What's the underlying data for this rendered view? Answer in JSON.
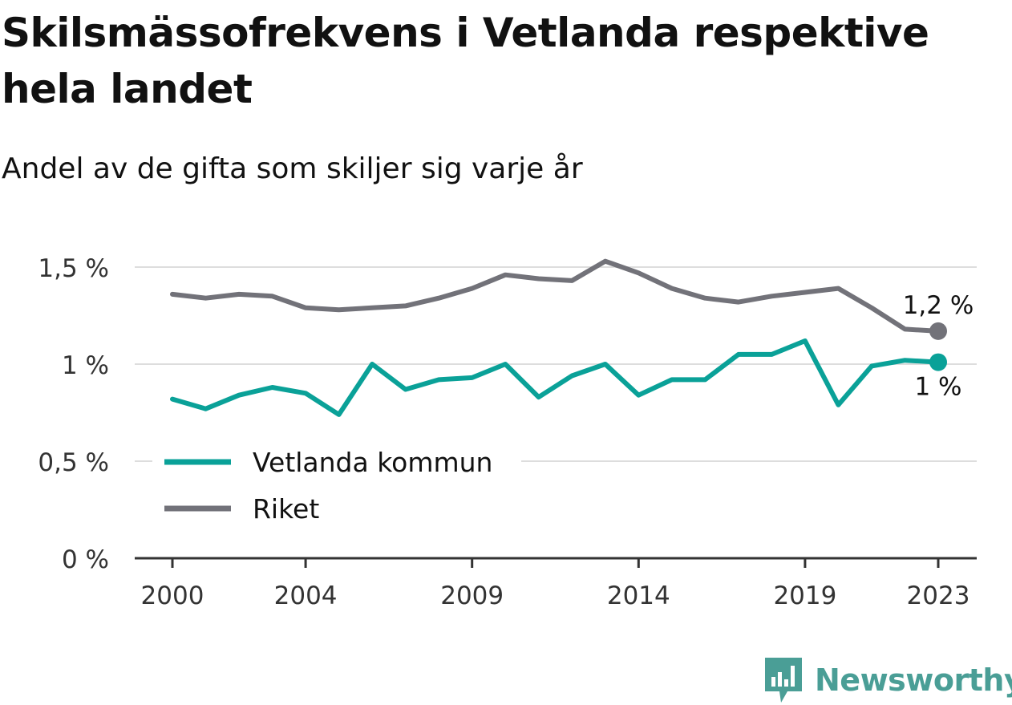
{
  "title": "Skilsmässofrekvens i Vetlanda respektive hela landet",
  "subtitle": "Andel av de gifta som skiljer sig varje år",
  "brand": "Newsworthy",
  "colors": {
    "vetlanda": "#0aa198",
    "riket": "#727279",
    "grid": "#dddddd",
    "axis": "#333333",
    "brand": "#4a9e96"
  },
  "chart_data": {
    "type": "line",
    "x": [
      2000,
      2001,
      2002,
      2003,
      2004,
      2005,
      2006,
      2007,
      2008,
      2009,
      2010,
      2011,
      2012,
      2013,
      2014,
      2015,
      2016,
      2017,
      2018,
      2019,
      2020,
      2021,
      2022,
      2023
    ],
    "x_ticks": [
      2000,
      2004,
      2009,
      2014,
      2019,
      2023
    ],
    "x_tick_labels": [
      "2000",
      "2004",
      "2009",
      "2014",
      "2019",
      "2023"
    ],
    "ylim": [
      0,
      1.5
    ],
    "y_ticks": [
      0,
      0.5,
      1,
      1.5
    ],
    "y_tick_labels": [
      "0 %",
      "0,5 %",
      "1 %",
      "1,5 %"
    ],
    "grid": true,
    "legend_position": "lower-left",
    "series": [
      {
        "name": "Vetlanda kommun",
        "key": "vetlanda",
        "values": [
          0.82,
          0.77,
          0.84,
          0.88,
          0.85,
          0.74,
          1.0,
          0.87,
          0.92,
          0.93,
          1.0,
          0.83,
          0.94,
          1.0,
          0.84,
          0.92,
          0.92,
          1.05,
          1.05,
          1.12,
          0.79,
          0.99,
          1.02,
          1.01
        ],
        "end_label": "1 %"
      },
      {
        "name": "Riket",
        "key": "riket",
        "values": [
          1.36,
          1.34,
          1.36,
          1.35,
          1.29,
          1.28,
          1.29,
          1.3,
          1.34,
          1.39,
          1.46,
          1.44,
          1.43,
          1.53,
          1.47,
          1.39,
          1.34,
          1.32,
          1.35,
          1.37,
          1.39,
          1.29,
          1.18,
          1.17
        ],
        "end_label": "1,2 %"
      }
    ]
  }
}
